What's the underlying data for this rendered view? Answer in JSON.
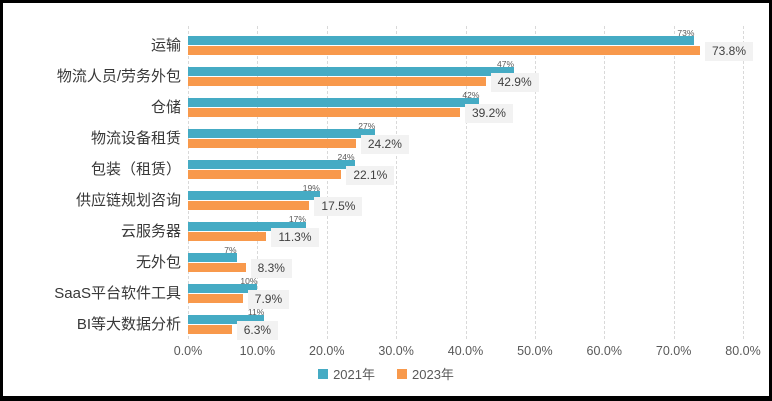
{
  "chart_data": {
    "type": "bar",
    "orientation": "horizontal",
    "title": "",
    "categories": [
      "运输",
      "物流人员/劳务外包",
      "仓储",
      "物流设备租赁",
      "包装（租赁）",
      "供应链规划咨询",
      "云服务器",
      "无外包",
      "SaaS平台软件工具",
      "BI等大数据分析"
    ],
    "series": [
      {
        "name": "2021年",
        "color": "#45abc4",
        "values": [
          73,
          47,
          42,
          27,
          24,
          19,
          17,
          7,
          10,
          11
        ],
        "labels": [
          "73%",
          "47%",
          "42%",
          "27%",
          "24%",
          "19%",
          "17%",
          "7%",
          "10%",
          "11%"
        ]
      },
      {
        "name": "2023年",
        "color": "#f8994c",
        "values": [
          73.8,
          42.9,
          39.2,
          24.2,
          22.1,
          17.5,
          11.3,
          8.3,
          7.9,
          6.3
        ],
        "labels": [
          "73.8%",
          "42.9%",
          "39.2%",
          "24.2%",
          "22.1%",
          "17.5%",
          "11.3%",
          "8.3%",
          "7.9%",
          "6.3%"
        ]
      }
    ],
    "x_ticks": [
      "0.0%",
      "10.0%",
      "20.0%",
      "30.0%",
      "40.0%",
      "50.0%",
      "60.0%",
      "70.0%",
      "80.0%"
    ],
    "xlim": [
      0,
      80
    ],
    "grid": "vertical-dashed",
    "grid_color": "#d9d9d9",
    "value_box_color": "#f2f2f2",
    "legend_position": "bottom-center"
  }
}
